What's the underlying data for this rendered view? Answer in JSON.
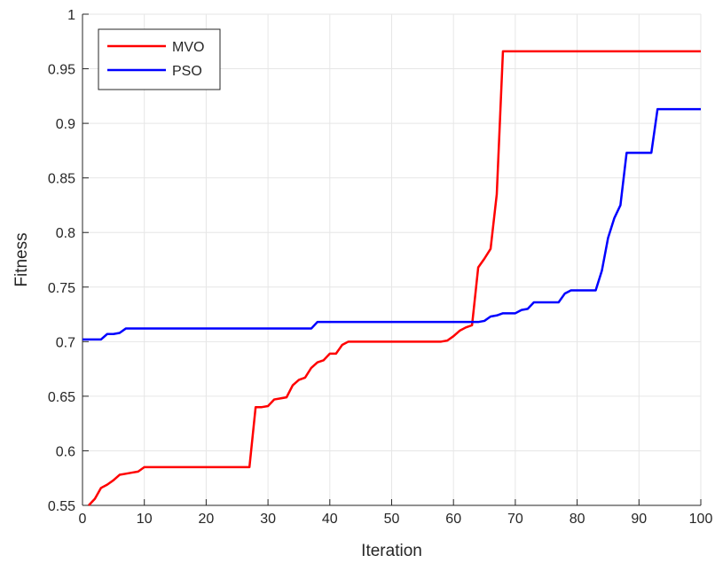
{
  "chart_data": {
    "type": "line",
    "title": "",
    "xlabel": "Iteration",
    "ylabel": "Fitness",
    "xlim": [
      0,
      100
    ],
    "ylim": [
      0.55,
      1
    ],
    "xticks": [
      0,
      10,
      20,
      30,
      40,
      50,
      60,
      70,
      80,
      90,
      100
    ],
    "yticks": [
      0.55,
      0.6,
      0.65,
      0.7,
      0.75,
      0.8,
      0.85,
      0.9,
      0.95,
      1
    ],
    "xtick_labels": [
      "0",
      "10",
      "20",
      "30",
      "40",
      "50",
      "60",
      "70",
      "80",
      "90",
      "100"
    ],
    "ytick_labels": [
      "0.55",
      "0.6",
      "0.65",
      "0.7",
      "0.75",
      "0.8",
      "0.85",
      "0.9",
      "0.95",
      "1"
    ],
    "grid": true,
    "legend_position": "top-left",
    "series": [
      {
        "name": "MVO",
        "color": "#ff0000",
        "points": [
          [
            1,
            0.55
          ],
          [
            2,
            0.556
          ],
          [
            3,
            0.566
          ],
          [
            4,
            0.569
          ],
          [
            5,
            0.573
          ],
          [
            6,
            0.578
          ],
          [
            7,
            0.579
          ],
          [
            8,
            0.58
          ],
          [
            9,
            0.581
          ],
          [
            10,
            0.585
          ],
          [
            11,
            0.585
          ],
          [
            12,
            0.585
          ],
          [
            20,
            0.585
          ],
          [
            26,
            0.585
          ],
          [
            27,
            0.585
          ],
          [
            28,
            0.64
          ],
          [
            29,
            0.64
          ],
          [
            30,
            0.641
          ],
          [
            31,
            0.647
          ],
          [
            32,
            0.648
          ],
          [
            33,
            0.649
          ],
          [
            34,
            0.66
          ],
          [
            35,
            0.665
          ],
          [
            36,
            0.667
          ],
          [
            37,
            0.676
          ],
          [
            38,
            0.681
          ],
          [
            39,
            0.683
          ],
          [
            40,
            0.689
          ],
          [
            41,
            0.689
          ],
          [
            42,
            0.697
          ],
          [
            43,
            0.7
          ],
          [
            50,
            0.7
          ],
          [
            58,
            0.7
          ],
          [
            59,
            0.701
          ],
          [
            60,
            0.705
          ],
          [
            61,
            0.71
          ],
          [
            62,
            0.713
          ],
          [
            63,
            0.715
          ],
          [
            64,
            0.768
          ],
          [
            65,
            0.776
          ],
          [
            66,
            0.785
          ],
          [
            67,
            0.835
          ],
          [
            68,
            0.966
          ],
          [
            70,
            0.966
          ],
          [
            80,
            0.966
          ],
          [
            90,
            0.966
          ],
          [
            100,
            0.966
          ]
        ]
      },
      {
        "name": "PSO",
        "color": "#0000ff",
        "points": [
          [
            0,
            0.702
          ],
          [
            3,
            0.702
          ],
          [
            4,
            0.707
          ],
          [
            5,
            0.707
          ],
          [
            6,
            0.708
          ],
          [
            7,
            0.712
          ],
          [
            20,
            0.712
          ],
          [
            37,
            0.712
          ],
          [
            38,
            0.718
          ],
          [
            50,
            0.718
          ],
          [
            64,
            0.718
          ],
          [
            65,
            0.719
          ],
          [
            66,
            0.723
          ],
          [
            67,
            0.724
          ],
          [
            68,
            0.726
          ],
          [
            70,
            0.726
          ],
          [
            71,
            0.729
          ],
          [
            72,
            0.73
          ],
          [
            73,
            0.736
          ],
          [
            77,
            0.736
          ],
          [
            78,
            0.744
          ],
          [
            79,
            0.747
          ],
          [
            83,
            0.747
          ],
          [
            84,
            0.765
          ],
          [
            85,
            0.795
          ],
          [
            86,
            0.813
          ],
          [
            87,
            0.825
          ],
          [
            88,
            0.873
          ],
          [
            92,
            0.873
          ],
          [
            93,
            0.913
          ],
          [
            95,
            0.913
          ],
          [
            100,
            0.913
          ]
        ]
      }
    ]
  }
}
